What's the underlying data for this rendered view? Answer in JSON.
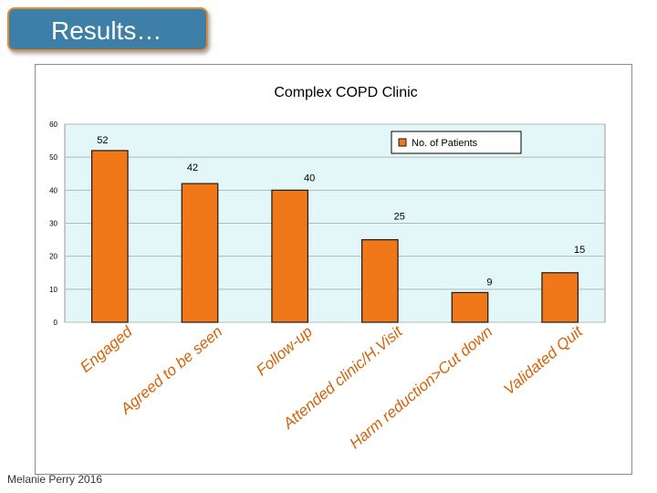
{
  "slide": {
    "title": "Results…",
    "footer": "Melanie Perry 2016"
  },
  "colors": {
    "title_bg": "#3d7fa6",
    "title_border": "#e08a3a",
    "plot_bg": "#e4f7f8",
    "bar_fill": "#f07818",
    "bar_stroke": "#1a1a1a",
    "category_text": "#d4620a"
  },
  "chart_data": {
    "type": "bar",
    "title": "Complex COPD Clinic",
    "xlabel": "",
    "ylabel": "",
    "ylim": [
      0,
      60
    ],
    "yticks": [
      0,
      10,
      20,
      30,
      40,
      50,
      60
    ],
    "grid": true,
    "legend_position": "top-right",
    "categories": [
      "Engaged",
      "Agreed to be seen",
      "Follow-up",
      "Attended clinic/H.Visit",
      "Harm reduction>Cut down",
      "Validated Quit"
    ],
    "series": [
      {
        "name": "No. of Patients",
        "values": [
          52,
          42,
          40,
          25,
          9,
          15
        ]
      }
    ]
  }
}
